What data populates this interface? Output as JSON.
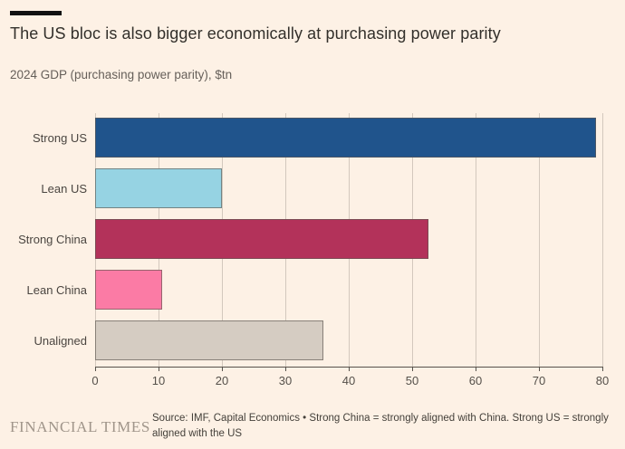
{
  "header": {
    "title": "The US bloc is also bigger economically at purchasing power parity",
    "subtitle": "2024 GDP (purchasing power parity), $tn"
  },
  "chart_data": {
    "type": "bar",
    "orientation": "horizontal",
    "title": "The US bloc is also bigger economically at purchasing power parity",
    "xlabel": "2024 GDP (purchasing power parity), $tn",
    "categories": [
      "Strong US",
      "Lean US",
      "Strong China",
      "Lean China",
      "Unaligned"
    ],
    "values": [
      79,
      20,
      52.5,
      10.5,
      36
    ],
    "bar_colors": [
      "#20548c",
      "#96d3e3",
      "#b3325a",
      "#fb7ba5",
      "#d5ccc2"
    ],
    "xlim": [
      0,
      80
    ],
    "x_ticks": [
      0,
      10,
      20,
      30,
      40,
      50,
      60,
      70,
      80
    ],
    "grid": "vertical-only",
    "legend": "none"
  },
  "footer": {
    "logo": "FINANCIAL TIMES",
    "source": "Source: IMF, Capital Economics • Strong China = strongly aligned with China. Strong US = strongly aligned with the US"
  },
  "colors": {
    "background": "#fdf1e5",
    "gridline": "#d3c8bd",
    "axis": "#57524c",
    "label_text": "#4a4540",
    "title_text": "#33302b",
    "subtitle_text": "#66605a",
    "logo_text": "#a0958a"
  }
}
